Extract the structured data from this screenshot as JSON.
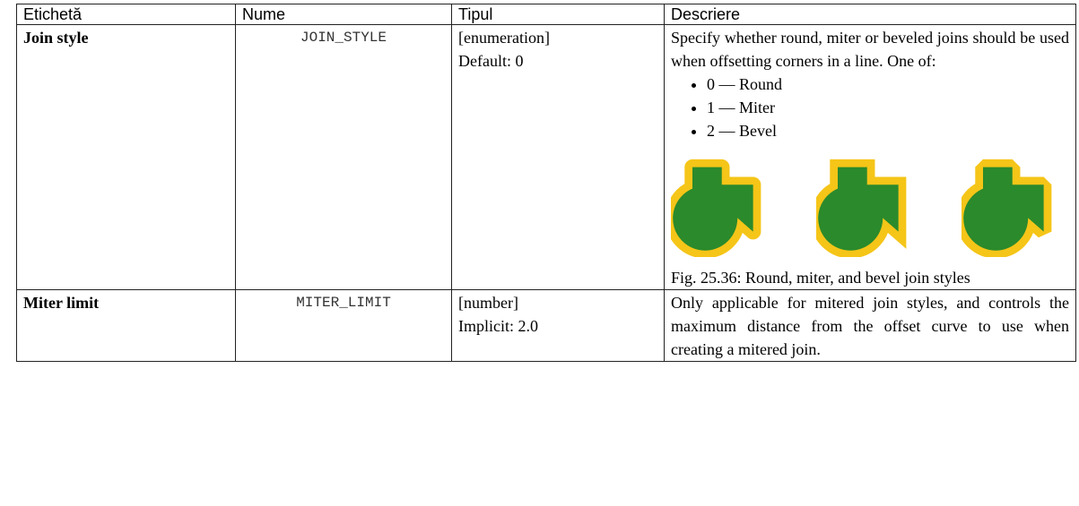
{
  "table": {
    "header": [
      "Etichetă",
      "Nume",
      "Tipul",
      "Descriere"
    ],
    "rows": [
      {
        "label": "Join style",
        "name": "JOIN_STYLE",
        "type": "[enumeration]",
        "default": "Default: 0",
        "description": "Specify whether round, miter or beveled joins should be used when offsetting corners in a line. One of:",
        "options": [
          "0 — Round",
          "1 — Miter",
          "2 — Bevel"
        ],
        "figure_caption": "Fig. 25.36: Round, miter, and bevel join styles"
      },
      {
        "label": "Miter limit",
        "name": "MITER_LIMIT",
        "type": "[number]",
        "default": "Implicit: 2.0",
        "description": "Only applicable for mitered join styles, and controls the maximum distance from the offset curve to use when creating a mitered join."
      }
    ]
  }
}
